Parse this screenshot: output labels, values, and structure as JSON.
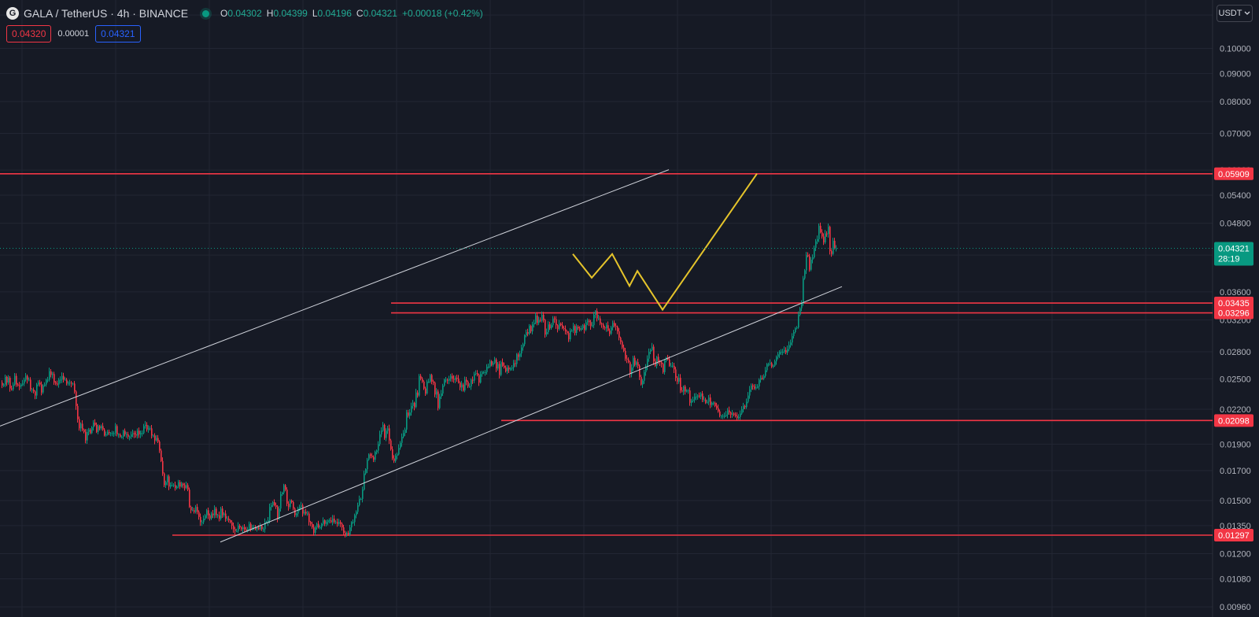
{
  "header": {
    "logo_glyph": "G",
    "title": "GALA / TetherUS · 4h · BINANCE",
    "o_label": "O",
    "o_value": "0.04302",
    "h_label": "H",
    "h_value": "0.04399",
    "l_label": "L",
    "l_value": "0.04196",
    "c_label": "C",
    "c_value": "0.04321",
    "change": "+0.00018 (+0.42%)"
  },
  "trade": {
    "sell": "0.04320",
    "spread": "0.00001",
    "buy": "0.04321"
  },
  "currency_button": {
    "label": "USDT",
    "icon": "chevron-down-icon"
  },
  "colors": {
    "background": "#161a25",
    "up": "#089981",
    "down": "#f23645",
    "level_line": "#f23645",
    "projection": "#e5c42b",
    "channel": "#d1d4dc"
  },
  "chart_data": {
    "type": "candlestick",
    "scale": "log",
    "ylim": [
      0.0092,
      0.1225
    ],
    "yticks": [
      "0.11500",
      "0.10000",
      "0.09000",
      "0.08000",
      "0.07000",
      "0.06000",
      "0.05400",
      "0.04800",
      "0.04200",
      "0.03600",
      "0.03200",
      "0.02800",
      "0.02500",
      "0.02200",
      "0.01900",
      "0.01700",
      "0.01500",
      "0.01350",
      "0.01200",
      "0.01080",
      "0.00960"
    ],
    "current": {
      "price": "0.04321",
      "countdown": "28:19"
    },
    "levels": [
      "0.05909",
      "0.03435",
      "0.03296",
      "0.02098",
      "0.01297"
    ],
    "price_path": [
      0.0246,
      0.0243,
      0.0244,
      0.0252,
      0.0246,
      0.0251,
      0.024,
      0.0239,
      0.0244,
      0.0253,
      0.0244,
      0.0243,
      0.0242,
      0.0244,
      0.0245,
      0.0249,
      0.0253,
      0.0249,
      0.0249,
      0.0239,
      0.0239,
      0.0237,
      0.0233,
      0.0244,
      0.0246,
      0.0244,
      0.0236,
      0.0243,
      0.0244,
      0.0249,
      0.0249,
      0.0258,
      0.0254,
      0.0255,
      0.0246,
      0.0245,
      0.0244,
      0.0249,
      0.0249,
      0.0253,
      0.0249,
      0.0249,
      0.0245,
      0.0246,
      0.0246,
      0.0245,
      0.0245,
      0.0237,
      0.0223,
      0.0211,
      0.0203,
      0.0207,
      0.0202,
      0.02,
      0.0193,
      0.02,
      0.0202,
      0.0199,
      0.0204,
      0.0208,
      0.0206,
      0.02,
      0.0205,
      0.0203,
      0.0205,
      0.0202,
      0.0197,
      0.0198,
      0.02,
      0.0199,
      0.0199,
      0.0199,
      0.0199,
      0.0205,
      0.0198,
      0.0198,
      0.0196,
      0.0196,
      0.0201,
      0.0198,
      0.0198,
      0.0196,
      0.0196,
      0.0198,
      0.0199,
      0.0198,
      0.0197,
      0.0201,
      0.0198,
      0.0199,
      0.0199,
      0.0205,
      0.0206,
      0.0202,
      0.0203,
      0.0203,
      0.0197,
      0.0197,
      0.0193,
      0.0195,
      0.0192,
      0.0185,
      0.0177,
      0.0168,
      0.016,
      0.0162,
      0.0166,
      0.0159,
      0.016,
      0.016,
      0.016,
      0.0158,
      0.0159,
      0.0162,
      0.0159,
      0.0161,
      0.016,
      0.0158,
      0.016,
      0.0157,
      0.0146,
      0.0144,
      0.0144,
      0.0143,
      0.0146,
      0.0143,
      0.014,
      0.0137,
      0.0137,
      0.0139,
      0.0141,
      0.0144,
      0.0141,
      0.0139,
      0.0142,
      0.0141,
      0.0145,
      0.0141,
      0.0141,
      0.0139,
      0.0145,
      0.0141,
      0.0142,
      0.0139,
      0.0139,
      0.0138,
      0.0137,
      0.0135,
      0.0133,
      0.0132,
      0.0132,
      0.0135,
      0.0134,
      0.0133,
      0.0134,
      0.0133,
      0.0132,
      0.0133,
      0.0136,
      0.0133,
      0.0134,
      0.0134,
      0.0133,
      0.0134,
      0.0133,
      0.0135,
      0.0133,
      0.0133,
      0.0137,
      0.0137,
      0.0138,
      0.0146,
      0.0147,
      0.0149,
      0.0147,
      0.0146,
      0.0139,
      0.0145,
      0.0154,
      0.0155,
      0.016,
      0.0157,
      0.0148,
      0.0146,
      0.015,
      0.0149,
      0.0145,
      0.0141,
      0.0142,
      0.0145,
      0.0146,
      0.0147,
      0.0142,
      0.0143,
      0.0142,
      0.0142,
      0.0137,
      0.0136,
      0.0134,
      0.0131,
      0.0134,
      0.0136,
      0.0134,
      0.0134,
      0.0136,
      0.0138,
      0.0136,
      0.0137,
      0.0138,
      0.0138,
      0.0137,
      0.0139,
      0.0137,
      0.0137,
      0.0136,
      0.0137,
      0.0136,
      0.0134,
      0.0131,
      0.013,
      0.0131,
      0.013,
      0.0134,
      0.0137,
      0.0137,
      0.0141,
      0.0143,
      0.0147,
      0.0151,
      0.0151,
      0.0157,
      0.0168,
      0.0171,
      0.0178,
      0.0182,
      0.0181,
      0.018,
      0.0178,
      0.0184,
      0.0185,
      0.019,
      0.0198,
      0.0201,
      0.0206,
      0.0195,
      0.0201,
      0.0203,
      0.0193,
      0.0186,
      0.0179,
      0.0177,
      0.0181,
      0.0182,
      0.0187,
      0.0191,
      0.0196,
      0.0199,
      0.0202,
      0.0217,
      0.0214,
      0.0217,
      0.0223,
      0.0226,
      0.0222,
      0.0236,
      0.0233,
      0.0253,
      0.025,
      0.0247,
      0.024,
      0.0235,
      0.0247,
      0.0247,
      0.0254,
      0.0247,
      0.0246,
      0.0234,
      0.0237,
      0.0221,
      0.0232,
      0.0235,
      0.0243,
      0.0249,
      0.0249,
      0.0248,
      0.025,
      0.0253,
      0.025,
      0.0249,
      0.0251,
      0.025,
      0.0246,
      0.0241,
      0.0244,
      0.0238,
      0.0249,
      0.0247,
      0.0242,
      0.0242,
      0.0249,
      0.0248,
      0.0255,
      0.0256,
      0.0254,
      0.0246,
      0.0255,
      0.0257,
      0.0257,
      0.0257,
      0.0263,
      0.0263,
      0.0269,
      0.0265,
      0.0267,
      0.0271,
      0.0261,
      0.0266,
      0.0254,
      0.0268,
      0.0264,
      0.0262,
      0.0258,
      0.0262,
      0.026,
      0.0261,
      0.0262,
      0.0267,
      0.0266,
      0.0277,
      0.0274,
      0.0278,
      0.0285,
      0.0289,
      0.03,
      0.0304,
      0.0302,
      0.0312,
      0.0305,
      0.0314,
      0.0316,
      0.0326,
      0.0316,
      0.032,
      0.0319,
      0.0327,
      0.032,
      0.0301,
      0.0304,
      0.0314,
      0.0309,
      0.0313,
      0.0322,
      0.0321,
      0.0313,
      0.0308,
      0.0315,
      0.0313,
      0.0309,
      0.0308,
      0.0305,
      0.0303,
      0.0295,
      0.0306,
      0.0306,
      0.0312,
      0.0303,
      0.0311,
      0.0309,
      0.0307,
      0.0309,
      0.0313,
      0.0307,
      0.0317,
      0.0319,
      0.0317,
      0.0312,
      0.0313,
      0.0327,
      0.0332,
      0.0322,
      0.0322,
      0.0315,
      0.0314,
      0.031,
      0.0309,
      0.0313,
      0.0306,
      0.0302,
      0.031,
      0.0316,
      0.0312,
      0.0311,
      0.0305,
      0.0297,
      0.0292,
      0.0285,
      0.0281,
      0.0272,
      0.0271,
      0.0268,
      0.0255,
      0.0262,
      0.0273,
      0.0265,
      0.0268,
      0.0264,
      0.0252,
      0.0244,
      0.0248,
      0.0257,
      0.0263,
      0.0272,
      0.028,
      0.0282,
      0.0286,
      0.0269,
      0.0264,
      0.0274,
      0.0269,
      0.0268,
      0.0266,
      0.0257,
      0.027,
      0.0273,
      0.0271,
      0.0264,
      0.0264,
      0.0264,
      0.026,
      0.0251,
      0.0247,
      0.0251,
      0.0238,
      0.0237,
      0.0242,
      0.0237,
      0.0238,
      0.0238,
      0.0226,
      0.0228,
      0.0229,
      0.0232,
      0.0232,
      0.0233,
      0.0232,
      0.0235,
      0.0229,
      0.0229,
      0.0226,
      0.0227,
      0.0231,
      0.0224,
      0.0226,
      0.0226,
      0.0223,
      0.0221,
      0.0218,
      0.0214,
      0.0214,
      0.0214,
      0.0214,
      0.0215,
      0.0219,
      0.0217,
      0.0215,
      0.0216,
      0.0215,
      0.0214,
      0.0212,
      0.0213,
      0.0216,
      0.022,
      0.0223,
      0.0222,
      0.0227,
      0.0233,
      0.0239,
      0.0243,
      0.0242,
      0.024,
      0.0241,
      0.0242,
      0.0249,
      0.0251,
      0.025,
      0.0253,
      0.0259,
      0.0266,
      0.0266,
      0.0267,
      0.0263,
      0.0264,
      0.0269,
      0.0274,
      0.0277,
      0.028,
      0.028,
      0.028,
      0.0282,
      0.0279,
      0.0283,
      0.0288,
      0.0291,
      0.0299,
      0.0304,
      0.0309,
      0.031,
      0.0327,
      0.0336,
      0.0343,
      0.0381,
      0.0394,
      0.042,
      0.0418,
      0.0395,
      0.0412,
      0.0416,
      0.0433,
      0.0445,
      0.0449,
      0.0475,
      0.0462,
      0.0454,
      0.0443,
      0.046,
      0.0459,
      0.0473,
      0.0427,
      0.0422,
      0.0446,
      0.0432,
      0.0432
    ],
    "channel": [
      {
        "points": [
          [
            0,
            0.0205
          ],
          [
            425,
            0.0601
          ]
        ]
      },
      {
        "points": [
          [
            140,
            0.0126
          ],
          [
            535,
            0.0368
          ]
        ]
      }
    ],
    "projection": [
      [
        364,
        0.0422
      ],
      [
        376,
        0.0382
      ],
      [
        389,
        0.0422
      ],
      [
        400,
        0.0369
      ],
      [
        405,
        0.0393
      ],
      [
        421,
        0.0334
      ],
      [
        481,
        0.0591
      ]
    ]
  }
}
